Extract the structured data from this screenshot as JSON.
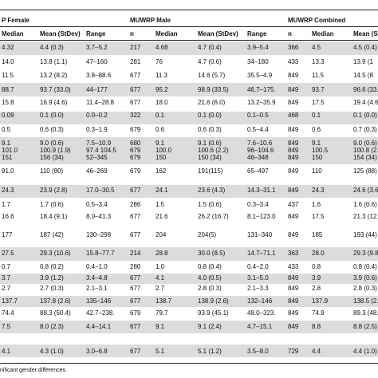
{
  "groups": {
    "female": "P Female",
    "male": "MUWRP Male",
    "combined": "MUWRP Combined"
  },
  "columns": [
    "Median",
    "Mean (StDev)",
    "Range",
    "n",
    "Median",
    "Mean (StDev)",
    "Range",
    "n",
    "Median",
    "Mean (S"
  ],
  "rows": [
    [
      "4.32",
      "4.4 (0.3)",
      "3.7–5.2",
      "217",
      "4.68",
      "4.7 (0.4)",
      "3.9–5.4",
      "366",
      "4.5",
      "4.5 (0.4)"
    ],
    [
      "14.0",
      "13.8 (1.1)",
      "47–160",
      "281",
      "76",
      "4.7 (0.6)",
      "34–180",
      "433",
      "13.3",
      "13.9 (1"
    ],
    [
      "11.5",
      "13.2 (8.2)",
      "3.8–88.6",
      "677",
      "11.3",
      "14.6 (5.7)",
      "35.5–4.9",
      "849",
      "11.5",
      "14.5 (8"
    ],
    [
      "88.7",
      "93.7 (33.0)",
      "44–177",
      "677",
      "95.2",
      "98.9 (33.5)",
      "46.7–175.",
      "849",
      "93.7",
      "96.6 (33."
    ],
    [
      "15.8",
      "16.9 (4.6)",
      "11.4–28.8",
      "677",
      "18.0",
      "21.6 (6.0)",
      "13.2–35.9",
      "849",
      "17.5",
      "19.4 (4.6"
    ],
    [
      "0.09",
      "0.1 (0.0)",
      "0.0–0.2",
      "322",
      "0.1",
      "0.1 (0.0)",
      "0.1–0.5",
      "468",
      "0.1",
      "0.1 (0.0)"
    ],
    [
      "0.5",
      "0.6 (0.3)",
      "0.3–1.9",
      "679",
      "0.6",
      "0.6 (0.3)",
      "0.5–4.4",
      "849",
      "0.6",
      "0.7 (0.3)"
    ],
    [
      "9.1",
      "9.0 (0.6)",
      "7.5–10.9",
      "680",
      "9.1",
      "9.1 (0.6)",
      "7.6–10.6",
      "849",
      "9.1",
      "9.0 (0.6)"
    ],
    [
      "101.0",
      "100.9 (1.9)",
      "97.4 104.5",
      "679",
      "100.0",
      "100.6 (2.2)",
      "96–104.6",
      "849",
      "100.5",
      "100.8 (2."
    ],
    [
      "151",
      "156 (34)",
      "52–345",
      "679",
      "150",
      "150 (34)",
      "46–348",
      "849",
      "150",
      "154 (34)"
    ],
    [
      "91.0",
      "110 (80)",
      "46–269",
      "679",
      "162",
      "191(115)",
      "65–497",
      "849",
      "110",
      "125 (88)"
    ],
    [
      "24.3",
      "23.9 (2.8)",
      "17.0–30.5",
      "677",
      "24.1",
      "23.6 (4.3)",
      "14.3–31.1",
      "849",
      "24.3",
      "24.6 (3.6"
    ],
    [
      "1.7",
      "1.7 (0.6)",
      "0.5–3.4",
      "286",
      "1.5",
      "1.5 (0.6)",
      "0.3–3.4",
      "437",
      "1.6",
      "1.6 (0.6)"
    ],
    [
      "16.6",
      "18.4 (9.1)",
      "8.0–41.3",
      "677",
      "21.6",
      "26.2 (16.7)",
      "8.1–123.0",
      "849",
      "17.5",
      "21.3 (12."
    ],
    [
      "177",
      "187 (42)",
      "130–298",
      "677",
      "204",
      "204(5)",
      "131–340",
      "849",
      "185",
      "193 (44)"
    ],
    [
      "27.5",
      "29.3 (10.6)",
      "15.8–77.7",
      "214",
      "28.8",
      "30.0 (8.5)",
      "14.7–71.1",
      "363",
      "28.0",
      "29.3 (9.8"
    ],
    [
      "0.7",
      "0.8 (0.2)",
      "0.4–1.0",
      "280",
      "1.0",
      "0.8 (0.4)",
      "0.4–2.0",
      "433",
      "0.8",
      "0.8 (0.4)"
    ],
    [
      "3.7",
      "3.9 (1.2)",
      "3.4–4.8",
      "677",
      "4.1",
      "4.0 (0.5)",
      "3.1–5.0",
      "849",
      "3.9",
      "3.9 (0.6)"
    ],
    [
      "2.7",
      "2.7 (0.3)",
      "2.1–3.1",
      "677",
      "2.7",
      "2.8 (0.3)",
      "2.1–3.3",
      "849",
      "2.8",
      "2.8 (0.3)"
    ],
    [
      "137.7",
      "137.8 (2.6)",
      "135–146",
      "677",
      "138.7",
      "138.9 (2.6)",
      "132–146",
      "849",
      "137.9",
      "138.5 (2."
    ],
    [
      "74.4",
      "88.3 (50.4)",
      "42.7–238.",
      "679",
      "79.7",
      "93.9 (45.1)",
      "48.0–323.",
      "849",
      "74.9",
      "89.3 (48."
    ],
    [
      "7.5",
      "8.0 (2.3)",
      "4.4–14.1",
      "677",
      "9.1",
      "9.1 (2.4)",
      "4.7–15.1",
      "849",
      "8.8",
      "8.8 (2.5)"
    ],
    [
      "4.1",
      "4.3 (1.0)",
      "3.0–6.8",
      "677",
      "5.1",
      "5.1 (1.2)",
      "3.5–8.0",
      "729",
      "4.4",
      "4.4 (1.0)"
    ]
  ],
  "footnote": "nificant gender differences."
}
